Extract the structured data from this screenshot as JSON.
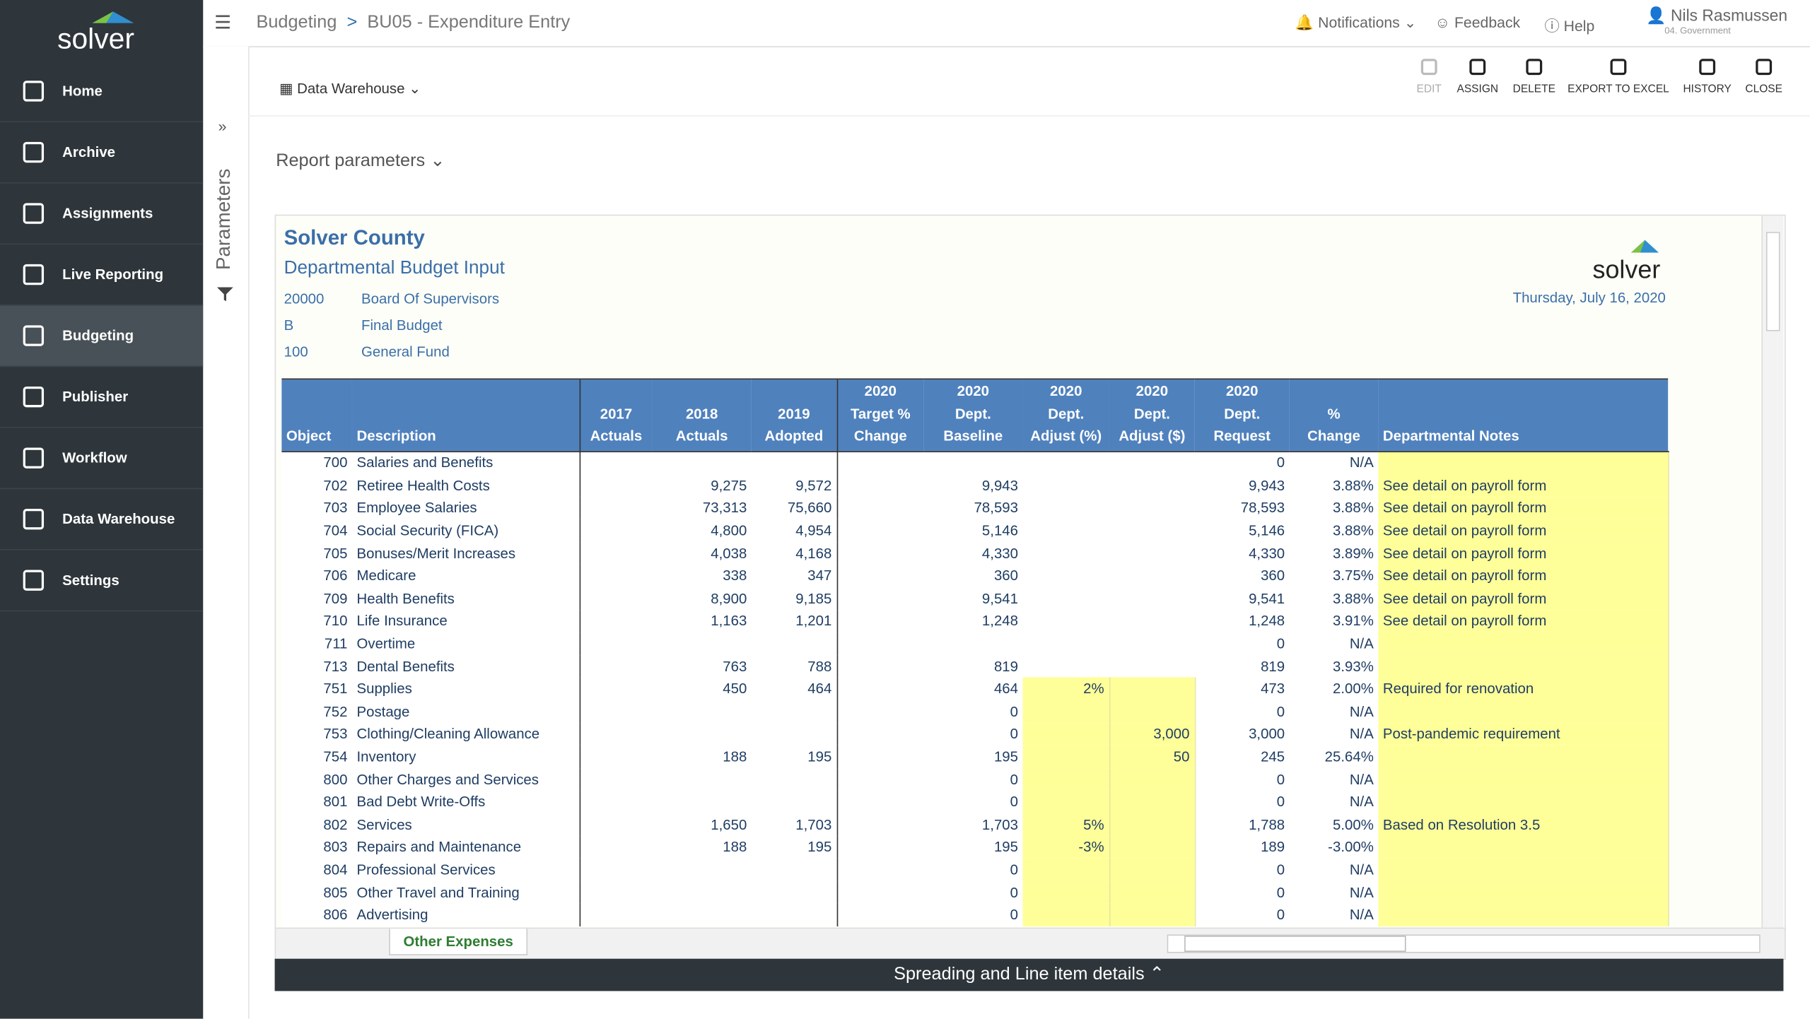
{
  "app": {
    "logo": "solver",
    "nav": [
      "Home",
      "Archive",
      "Assignments",
      "Live Reporting",
      "Budgeting",
      "Publisher",
      "Workflow",
      "Data Warehouse",
      "Settings"
    ]
  },
  "topbar": {
    "breadcrumb": [
      "Budgeting",
      ">",
      "BU05 - Expenditure Entry"
    ],
    "notifications": "Notifications",
    "feedback": "Feedback",
    "help": "Help",
    "user": "Nils Rasmussen",
    "role": "04. Government"
  },
  "toolbar": {
    "source": "Data Warehouse",
    "actions": [
      "EDIT",
      "ASSIGN",
      "DELETE",
      "EXPORT TO EXCEL",
      "HISTORY",
      "CLOSE"
    ]
  },
  "parameters": {
    "side_label": "Parameters",
    "report_parameters": "Report parameters"
  },
  "report": {
    "org": "Solver County",
    "title": "Departmental Budget Input",
    "logo": "solver",
    "date": "Thursday, July 16, 2020",
    "info": [
      [
        "20000",
        "Board Of Supervisors"
      ],
      [
        "B",
        "Final Budget"
      ],
      [
        "100",
        "General Fund"
      ]
    ],
    "headers": [
      [
        "Object"
      ],
      [
        "Description"
      ],
      [
        "2017",
        "Actuals"
      ],
      [
        "2018",
        "Actuals"
      ],
      [
        "2019",
        "Adopted"
      ],
      [
        "2020",
        "Target %",
        "Change"
      ],
      [
        "2020",
        "Dept.",
        "Baseline"
      ],
      [
        "2020",
        "Dept.",
        "Adjust (%)"
      ],
      [
        "2020",
        "Dept.",
        "Adjust ($)"
      ],
      [
        "2020",
        "Dept.",
        "Request"
      ],
      [
        "%",
        "Change"
      ],
      [
        "Departmental Notes"
      ]
    ],
    "rows": [
      [
        "700",
        "Salaries and Benefits",
        null,
        null,
        null,
        null,
        null,
        null,
        null,
        "0",
        "N/A",
        null
      ],
      [
        "702",
        "Retiree Health Costs",
        null,
        "9,275",
        "9,572",
        null,
        "9,943",
        null,
        null,
        "9,943",
        "3.88%",
        "See detail on payroll form"
      ],
      [
        "703",
        "Employee Salaries",
        null,
        "73,313",
        "75,660",
        null,
        "78,593",
        null,
        null,
        "78,593",
        "3.88%",
        "See detail on payroll form"
      ],
      [
        "704",
        "Social Security (FICA)",
        null,
        "4,800",
        "4,954",
        null,
        "5,146",
        null,
        null,
        "5,146",
        "3.88%",
        "See detail on payroll form"
      ],
      [
        "705",
        "Bonuses/Merit Increases",
        null,
        "4,038",
        "4,168",
        null,
        "4,330",
        null,
        null,
        "4,330",
        "3.89%",
        "See detail on payroll form"
      ],
      [
        "706",
        "Medicare",
        null,
        "338",
        "347",
        null,
        "360",
        null,
        null,
        "360",
        "3.75%",
        "See detail on payroll form"
      ],
      [
        "709",
        "Health Benefits",
        null,
        "8,900",
        "9,185",
        null,
        "9,541",
        null,
        null,
        "9,541",
        "3.88%",
        "See detail on payroll form"
      ],
      [
        "710",
        "Life Insurance",
        null,
        "1,163",
        "1,201",
        null,
        "1,248",
        null,
        null,
        "1,248",
        "3.91%",
        "See detail on payroll form"
      ],
      [
        "711",
        "Overtime",
        null,
        null,
        null,
        null,
        null,
        null,
        null,
        "0",
        "N/A",
        null
      ],
      [
        "713",
        "Dental Benefits",
        null,
        "763",
        "788",
        null,
        "819",
        null,
        null,
        "819",
        "3.93%",
        null
      ],
      [
        "751",
        "Supplies",
        null,
        "450",
        "464",
        null,
        "464",
        "2%",
        null,
        "473",
        "2.00%",
        "Required for renovation"
      ],
      [
        "752",
        "Postage",
        null,
        null,
        null,
        null,
        "0",
        null,
        null,
        "0",
        "N/A",
        null
      ],
      [
        "753",
        "Clothing/Cleaning Allowance",
        null,
        null,
        null,
        null,
        "0",
        null,
        "3,000",
        "3,000",
        "N/A",
        "Post-pandemic requirement"
      ],
      [
        "754",
        "Inventory",
        null,
        "188",
        "195",
        null,
        "195",
        null,
        "50",
        "245",
        "25.64%",
        null
      ],
      [
        "800",
        "Other Charges and Services",
        null,
        null,
        null,
        null,
        "0",
        null,
        null,
        "0",
        "N/A",
        null
      ],
      [
        "801",
        "Bad Debt Write-Offs",
        null,
        null,
        null,
        null,
        "0",
        null,
        null,
        "0",
        "N/A",
        null
      ],
      [
        "802",
        "Services",
        null,
        "1,650",
        "1,703",
        null,
        "1,703",
        "5%",
        null,
        "1,788",
        "5.00%",
        "Based on Resolution 3.5"
      ],
      [
        "803",
        "Repairs and Maintenance",
        null,
        "188",
        "195",
        null,
        "195",
        "-3%",
        null,
        "189",
        "-3.00%",
        null
      ],
      [
        "804",
        "Professional Services",
        null,
        null,
        null,
        null,
        "0",
        null,
        null,
        "0",
        "N/A",
        null
      ],
      [
        "805",
        "Other Travel and Training",
        null,
        null,
        null,
        null,
        "0",
        null,
        null,
        "0",
        "N/A",
        null
      ],
      [
        "806",
        "Advertising",
        null,
        null,
        null,
        null,
        "0",
        null,
        null,
        "0",
        "N/A",
        null
      ]
    ]
  },
  "sheet_tab": "Other Expenses",
  "footer": "Spreading and Line item details"
}
